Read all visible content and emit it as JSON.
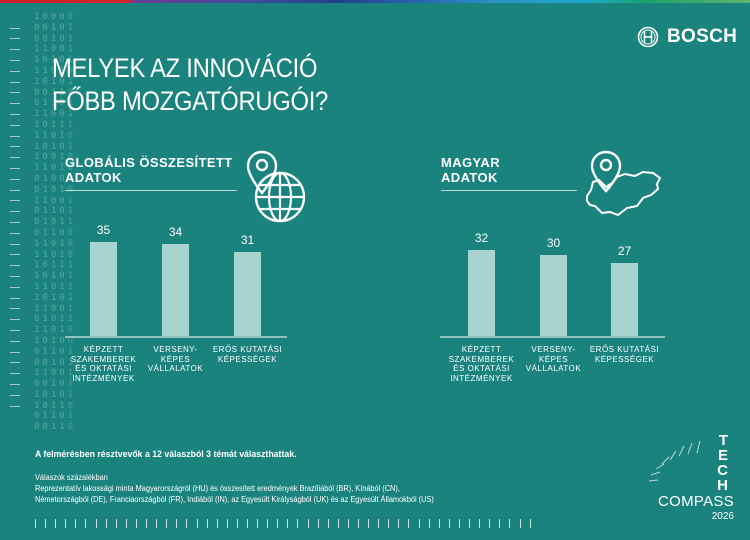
{
  "header": {
    "title_line1": "MELYEK AZ INNOVÁCIÓ",
    "title_line2": "FŐBB MOZGATÓRUGÓI?",
    "brand": "BOSCH"
  },
  "decor": {
    "binary": [
      "10000",
      "00101",
      "00101",
      "11001",
      "10101",
      "11010",
      "10101",
      "00110",
      "01101",
      "11001",
      "10111",
      "11010",
      "10101",
      "10010",
      "11010",
      "01000",
      "01010",
      "11001",
      "01101",
      "01011",
      "01100",
      "11010",
      "11010",
      "10111",
      "10101",
      "11011",
      "10101",
      "11001",
      "01011",
      "11010",
      "10100",
      "01101",
      "00101",
      "11001",
      "00101",
      "10101",
      "10110",
      "01101",
      "00110"
    ]
  },
  "chart_data": [
    {
      "type": "bar",
      "title": "GLOBÁLIS ÖSSZESÍTETT ADATOK",
      "icon": "location-pin-globe-icon",
      "categories": [
        "KÉPZETT SZAKEMBEREK ÉS OKTATÁSI INTÉZMÉNYEK",
        "VERSENY-KÉPES VÁLLALATOK",
        "ERŐS KUTATÁSI KÉPESSÉGEK"
      ],
      "category_lines": [
        [
          "KÉPZETT",
          "SZAKEMBEREK",
          "ÉS OKTATÁSI",
          "INTÉZMÉNYEK"
        ],
        [
          "VERSENY-",
          "KÉPES",
          "VÁLLALATOK"
        ],
        [
          "ERŐS KUTATÁSI",
          "KÉPESSÉGEK"
        ]
      ],
      "values": [
        35,
        34,
        31
      ],
      "value_labels": [
        "35",
        "34",
        "31"
      ],
      "bar_color": "#a9d5d1",
      "grid": false
    },
    {
      "type": "bar",
      "title": "MAGYAR ADATOK",
      "icon": "location-pin-hungary-map-icon",
      "categories": [
        "KÉPZETT SZAKEMBEREK ÉS OKTATÁSI INTÉZMÉNYEK",
        "VERSENY-KÉPES VÁLLALATOK",
        "ERŐS KUTATÁSI KÉPESSÉGEK"
      ],
      "category_lines": [
        [
          "KÉPZETT",
          "SZAKEMBEREK",
          "ÉS OKTATÁSI",
          "INTÉZMÉNYEK"
        ],
        [
          "VERSENY-",
          "KÉPES",
          "VÁLLALATOK"
        ],
        [
          "ERŐS KUTATÁSI",
          "KÉPESSÉGEK"
        ]
      ],
      "values": [
        32,
        30,
        27
      ],
      "value_labels": [
        "32",
        "30",
        "27"
      ],
      "bar_color": "#a9d5d1",
      "grid": false
    }
  ],
  "sections": {
    "global_title_1": "GLOBÁLIS ÖSSZESÍTETT",
    "global_title_2": "ADATOK",
    "hu_title_1": "MAGYAR",
    "hu_title_2": "ADATOK"
  },
  "footer": {
    "note": "A felmérésben résztvevők a 12 válaszból 3 témát választhattak.",
    "line1": "Válaszok százalékban",
    "line2": "Reprezentatív lakossági minta Magyarországról (HU) és összesített eredmények Brazíliából (BR), Kínából (CN),",
    "line3": "Németországból (DE), Franciaországból (FR), Indiából (IN), az Egyesült Királyságból (UK) és az Egyesült Államokból (US)"
  },
  "techcompass": {
    "letters": [
      "T",
      "E",
      "C",
      "H"
    ],
    "compass": "COMPASS",
    "year": "2026"
  },
  "colors": {
    "background": "#1a837e",
    "bar": "#a9d5d1",
    "text": "#ffffff"
  }
}
